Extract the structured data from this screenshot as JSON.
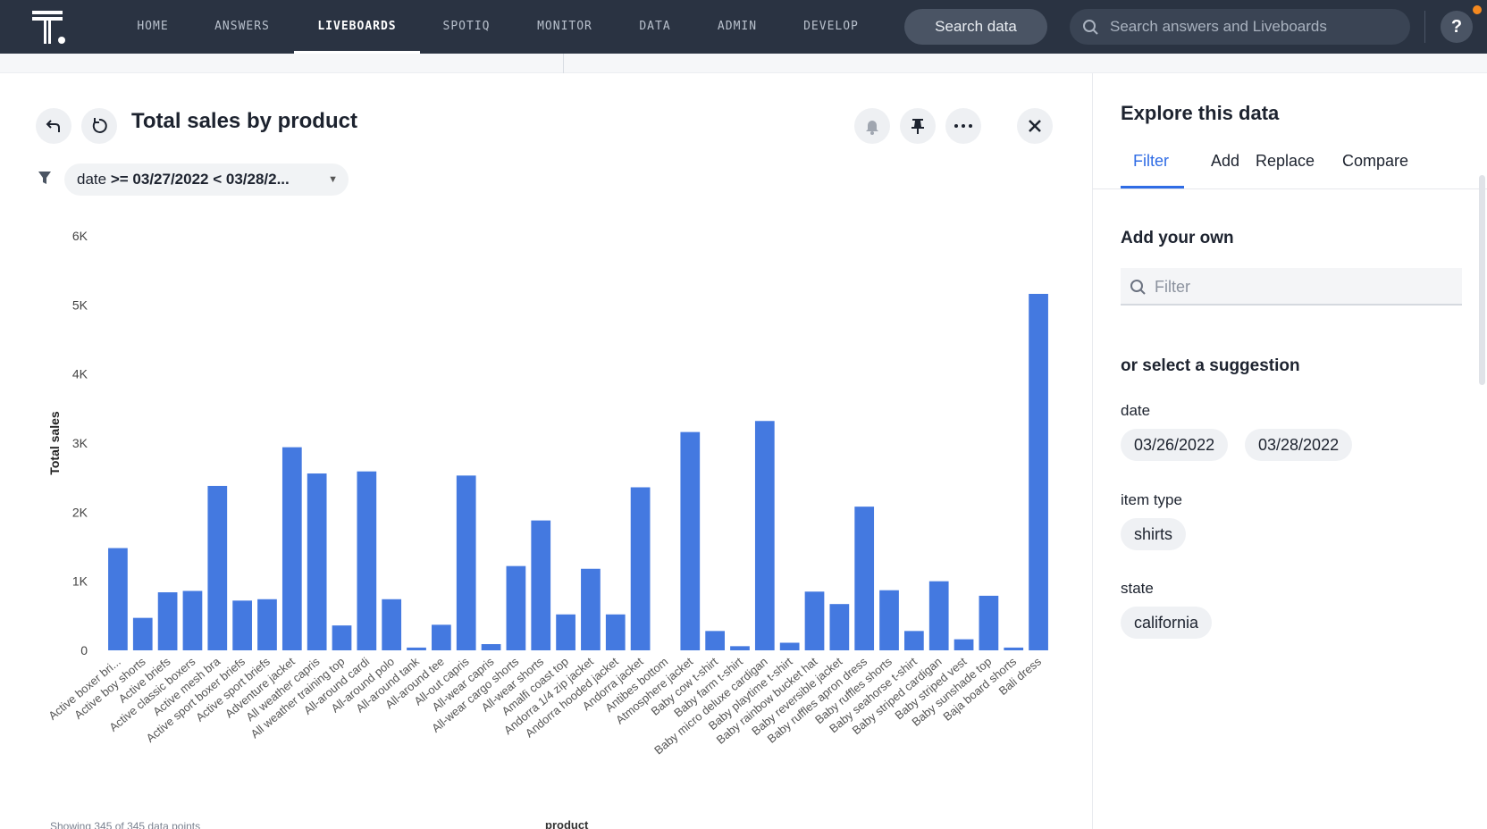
{
  "nav": {
    "items": [
      "HOME",
      "ANSWERS",
      "LIVEBOARDS",
      "SPOTIQ",
      "MONITOR",
      "DATA",
      "ADMIN",
      "DEVELOP"
    ],
    "active": "LIVEBOARDS",
    "search_data_label": "Search data",
    "global_search_placeholder": "Search answers and Liveboards",
    "help_label": "?"
  },
  "viz": {
    "title": "Total sales by product",
    "filter_field": "date",
    "filter_value": ">= 03/27/2022 < 03/28/2...",
    "footer_note": "Showing 345 of 345 data points",
    "footer_axis": "product"
  },
  "chart_data": {
    "type": "bar",
    "ylabel": "Total sales",
    "xlabel": "product",
    "ylim": [
      0,
      6000
    ],
    "yticks": [
      "0",
      "1K",
      "2K",
      "3K",
      "4K",
      "5K",
      "6K"
    ],
    "categories": [
      "Active boxer bri...",
      "Active boy shorts",
      "Active briefs",
      "Active classic boxers",
      "Active mesh bra",
      "Active sport boxer briefs",
      "Active sport briefs",
      "Adventure jacket",
      "All weather capris",
      "All weather training top",
      "All-around cardi",
      "All-around polo",
      "All-around tank",
      "All-around tee",
      "All-out capris",
      "All-wear capris",
      "All-wear cargo shorts",
      "All-wear shorts",
      "Amalfi coast top",
      "Andorra 1/4 zip jacket",
      "Andorra hooded jacket",
      "Andorra jacket",
      "Antibes bottom",
      "Atmosphere jacket",
      "Baby cow t-shirt",
      "Baby farm t-shirt",
      "Baby micro deluxe cardigan",
      "Baby playtime t-shirt",
      "Baby rainbow bucket hat",
      "Baby reversible jacket",
      "Baby ruffles apron dress",
      "Baby ruffles shorts",
      "Baby seahorse t-shirt",
      "Baby striped cardigan",
      "Baby striped vest",
      "Baby sunshade top",
      "Baja board shorts",
      "Bali dress"
    ],
    "values": [
      1480,
      470,
      840,
      860,
      2380,
      720,
      740,
      2940,
      2560,
      360,
      2590,
      740,
      40,
      370,
      2530,
      90,
      1220,
      1880,
      520,
      1180,
      520,
      2360,
      0,
      3160,
      280,
      60,
      3320,
      110,
      850,
      670,
      2080,
      870,
      280,
      1000,
      160,
      790,
      40,
      5160
    ],
    "bar_color": "#4479e0"
  },
  "panel": {
    "title": "Explore this data",
    "tabs": [
      "Filter",
      "Add",
      "Replace",
      "Compare"
    ],
    "active_tab": "Filter",
    "add_own": "Add your own",
    "filter_placeholder": "Filter",
    "or_select": "or select a suggestion",
    "groups": [
      {
        "label": "date",
        "chips": [
          "03/26/2022",
          "03/28/2022"
        ]
      },
      {
        "label": "item type",
        "chips": [
          "shirts"
        ]
      },
      {
        "label": "state",
        "chips": [
          "california"
        ]
      }
    ]
  }
}
